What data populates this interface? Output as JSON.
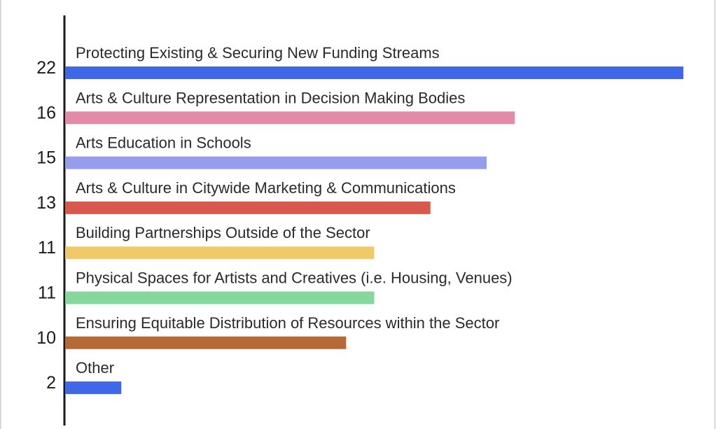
{
  "chart_data": {
    "type": "bar",
    "orientation": "horizontal",
    "categories": [
      "Protecting Existing & Securing New Funding Streams",
      "Arts & Culture Representation in Decision Making Bodies",
      "Arts Education in Schools",
      "Arts & Culture in Citywide Marketing & Communications",
      "Building Partnerships Outside of the Sector",
      "Physical Spaces for Artists and Creatives (i.e. Housing, Venues)",
      "Ensuring Equitable Distribution of Resources within the Sector",
      "Other"
    ],
    "values": [
      22,
      16,
      15,
      13,
      11,
      11,
      10,
      2
    ],
    "colors": [
      "#3f68e8",
      "#e48aa9",
      "#979ded",
      "#d9574b",
      "#f0c96a",
      "#84d89c",
      "#b56a35",
      "#3f68e8"
    ],
    "xlim": [
      0,
      22
    ],
    "grid": false,
    "title": "",
    "xlabel": "",
    "ylabel": ""
  }
}
